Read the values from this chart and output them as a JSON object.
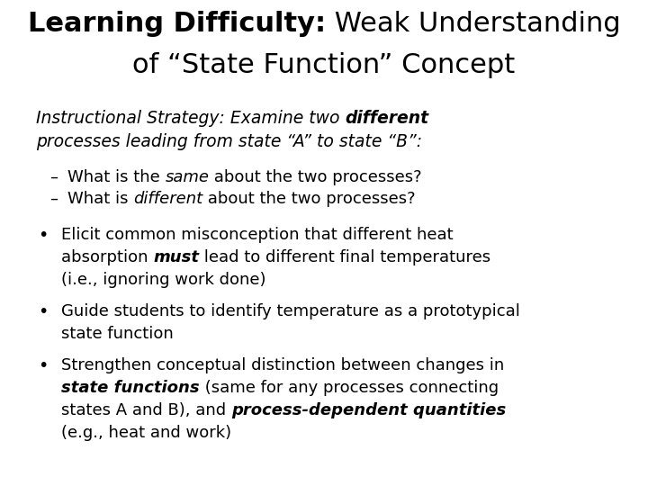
{
  "background_color": "#ffffff",
  "text_color": "#000000",
  "title_fs": 22,
  "sub_fs": 13.5,
  "body_fs": 13,
  "title_line1_bold": "Learning Difficulty:",
  "title_line1_normal": " Weak Understanding",
  "title_line2": "of “State Function” Concept",
  "subtitle_pre": "Instructional Strategy: Examine two ",
  "subtitle_bold": "different",
  "subtitle_line2": "processes leading from state “A” to state “B”:",
  "dash_items": [
    [
      [
        "normal",
        "What is the "
      ],
      [
        "italic",
        "same"
      ],
      [
        " normal",
        " about the two processes?"
      ]
    ],
    [
      [
        "normal",
        "What is "
      ],
      [
        "italic",
        "different"
      ],
      [
        "normal",
        " about the two processes?"
      ]
    ]
  ],
  "bullet1_segments": [
    [
      "normal",
      "Elicit common misconception that different heat\nabsorption "
    ],
    [
      "bold_italic",
      "must"
    ],
    [
      "normal",
      " lead to different final temperatures\n(i.e., ignoring work done)"
    ]
  ],
  "bullet2_segments": [
    [
      "normal",
      "Guide students to identify temperature as a prototypical\nstate function"
    ]
  ],
  "bullet3_segments": [
    [
      "normal",
      "Strengthen conceptual distinction between changes in\n"
    ],
    [
      "bold_italic",
      "state functions"
    ],
    [
      "normal",
      " (same for any processes connecting\nstates A and B), and "
    ],
    [
      "bold_italic",
      "process-dependent quantities"
    ],
    [
      "normal",
      "\n(e.g., heat and work)"
    ]
  ]
}
